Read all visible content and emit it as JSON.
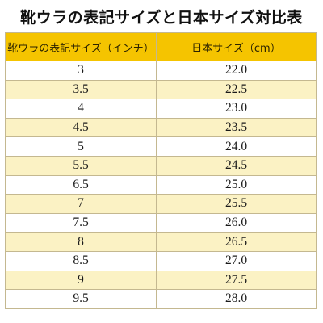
{
  "title": "靴ウラの表記サイズと日本サイズ対比表",
  "table": {
    "headers": [
      "靴ウラの表記サイズ（インチ）",
      "日本サイズ（cm）"
    ],
    "rows": [
      [
        "3",
        "22.0"
      ],
      [
        "3.5",
        "22.5"
      ],
      [
        "4",
        "23.0"
      ],
      [
        "4.5",
        "23.5"
      ],
      [
        "5",
        "24.0"
      ],
      [
        "5.5",
        "24.5"
      ],
      [
        "6.5",
        "25.0"
      ],
      [
        "7",
        "25.5"
      ],
      [
        "7.5",
        "26.0"
      ],
      [
        "8",
        "26.5"
      ],
      [
        "8.5",
        "27.0"
      ],
      [
        "9",
        "27.5"
      ],
      [
        "9.5",
        "28.0"
      ]
    ]
  },
  "colors": {
    "header_background": "#f5c400",
    "alternate_row_background": "#fbf2c4",
    "row_background": "#ffffff",
    "border": "#c4b890"
  }
}
